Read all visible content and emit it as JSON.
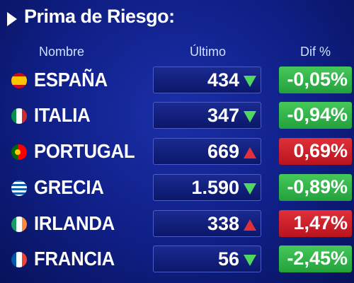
{
  "header": {
    "title": "Prima de Riesgo:"
  },
  "table": {
    "columns": [
      "Nombre",
      "Último",
      "Dif %"
    ],
    "rows": [
      {
        "name": "ESPAÑA",
        "value": "434",
        "change": "-0,05%"
      },
      {
        "name": "ITALIA",
        "value": "347",
        "change": "-0,94%"
      },
      {
        "name": "PORTUGAL",
        "value": "669",
        "change": "0,69%"
      },
      {
        "name": "GRECIA",
        "value": "1.590",
        "change": "-0,89%"
      },
      {
        "name": "IRLANDA",
        "value": "338",
        "change": "1,47%"
      },
      {
        "name": "FRANCIA",
        "value": "56",
        "change": "-2,45%"
      }
    ]
  }
}
